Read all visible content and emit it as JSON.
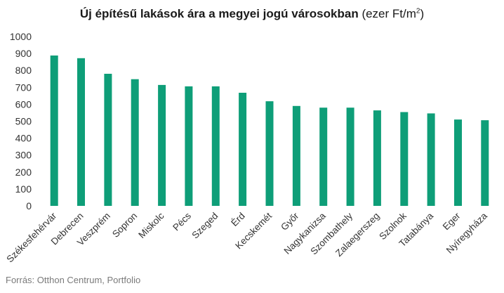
{
  "chart_data": {
    "type": "bar",
    "title": "Új építésű lakások ára a megyei jogú városokban",
    "title_unit_prefix": "(ezer Ft/m",
    "title_unit_sup": "2",
    "title_unit_suffix": ")",
    "xlabel": "",
    "ylabel": "",
    "ylim": [
      0,
      1000
    ],
    "yticks": [
      "0",
      "100",
      "200",
      "300",
      "400",
      "500",
      "600",
      "700",
      "800",
      "900",
      "1000"
    ],
    "grid": false,
    "bar_color": "#0e9e78",
    "categories": [
      "Székesfehérvár",
      "Debrecen",
      "Veszprém",
      "Sopron",
      "Miskolc",
      "Pécs",
      "Szeged",
      "Érd",
      "Kecskemét",
      "Győr",
      "Nagykanizsa",
      "Szombathely",
      "Zalaegerszeg",
      "Szolnok",
      "Tatabánya",
      "Eger",
      "Nyíregyháza"
    ],
    "values": [
      888,
      872,
      780,
      748,
      714,
      706,
      706,
      668,
      618,
      590,
      580,
      580,
      564,
      554,
      546,
      510,
      506
    ]
  },
  "source": "Forrás: Otthon Centrum, Portfolio"
}
